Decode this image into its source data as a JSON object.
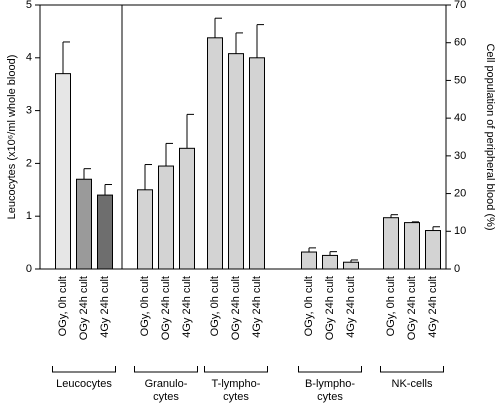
{
  "chart_data": {
    "type": "bar",
    "ylabel": "Leucocytes (x10⁶/ml whole blood)",
    "y2label": "Cell population of peripheral blood (%)",
    "ylim": [
      0,
      5
    ],
    "yticks": [
      0,
      1,
      2,
      3,
      4,
      5
    ],
    "y2lim": [
      0,
      70
    ],
    "y2ticks": [
      0,
      10,
      20,
      30,
      40,
      50,
      60,
      70
    ],
    "categories": [
      "OGy, 0h cult",
      "OGy 24h cult",
      "4Gy 24h cult"
    ],
    "groups": [
      {
        "label": [
          "Leucocytes"
        ],
        "axis": "y",
        "values": [
          3.7,
          1.7,
          1.4
        ],
        "errors": [
          0.6,
          0.2,
          0.2
        ],
        "colors": [
          "#e6e6e6",
          "#9a9a9a",
          "#6e6e6e"
        ]
      },
      {
        "label": [
          "Granulo-",
          "cytes"
        ],
        "axis": "y2",
        "values": [
          21,
          27.3,
          32
        ],
        "errors": [
          6.7,
          6,
          9
        ],
        "colors": [
          "#d3d3d3",
          "#d3d3d3",
          "#d3d3d3"
        ]
      },
      {
        "label": [
          "T-lympho-",
          "cytes"
        ],
        "axis": "y2",
        "values": [
          61.3,
          57.1,
          56
        ],
        "errors": [
          5.2,
          5.5,
          8.8
        ],
        "colors": [
          "#d3d3d3",
          "#d3d3d3",
          "#d3d3d3"
        ]
      },
      {
        "label": [
          "B-lympho-",
          "cytes"
        ],
        "axis": "y2",
        "values": [
          4.5,
          3.6,
          1.8
        ],
        "errors": [
          1.1,
          1,
          0.6
        ],
        "colors": [
          "#d3d3d3",
          "#d3d3d3",
          "#d3d3d3"
        ]
      },
      {
        "label": [
          "NK-cells"
        ],
        "axis": "y2",
        "values": [
          13.6,
          12.3,
          10.2
        ],
        "errors": [
          0.8,
          0.2,
          1
        ],
        "colors": [
          "#d3d3d3",
          "#d3d3d3",
          "#d3d3d3"
        ]
      }
    ]
  }
}
